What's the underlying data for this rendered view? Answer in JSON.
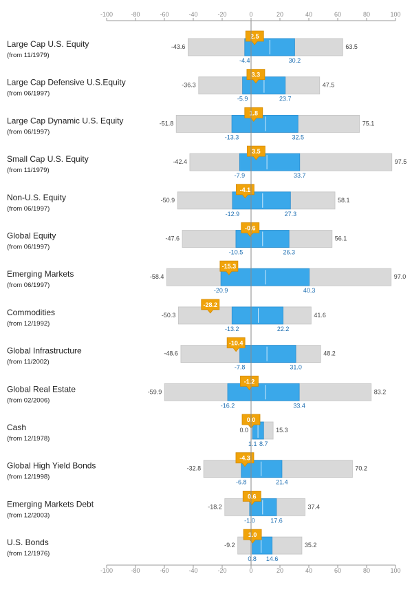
{
  "chart_data": {
    "type": "range-bar",
    "xlim": [
      -100,
      100
    ],
    "ticks": [
      -100,
      -80,
      -60,
      -40,
      -20,
      0,
      20,
      40,
      60,
      80,
      100
    ],
    "grid": false,
    "colors": {
      "range": "#d9d9d9",
      "interquartile": "#3aa8ea",
      "marker": "#f0a30a",
      "axis": "#999999"
    },
    "categories": [
      {
        "name": "Large Cap U.S. Equity",
        "since": "(from 11/1979)",
        "min": -43.6,
        "q1": -4.4,
        "median": 13.0,
        "q3": 30.2,
        "max": 63.5,
        "current": 2.5,
        "min_label": "-43.6",
        "q1_label": "-4.4",
        "q3_label": "30.2",
        "max_label": "63.5",
        "current_label": "2.5"
      },
      {
        "name": "Large Cap Defensive U.S.Equity",
        "since": "(from 06/1997)",
        "min": -36.3,
        "q1": -5.9,
        "median": 9.0,
        "q3": 23.7,
        "max": 47.5,
        "current": 3.3,
        "min_label": "-36.3",
        "q1_label": "-5.9",
        "q3_label": "23.7",
        "max_label": "47.5",
        "current_label": "3.3"
      },
      {
        "name": "Large Cap Dynamic U.S. Equity",
        "since": "(from 06/1997)",
        "min": -51.8,
        "q1": -13.3,
        "median": 10.0,
        "q3": 32.5,
        "max": 75.1,
        "current": 1.8,
        "min_label": "-51.8",
        "q1_label": "-13.3",
        "q3_label": "32.5",
        "max_label": "75.1",
        "current_label": "1.8"
      },
      {
        "name": "Small Cap U.S. Equity",
        "since": "(from 11/1979)",
        "min": -42.4,
        "q1": -7.9,
        "median": 11.0,
        "q3": 33.7,
        "max": 97.5,
        "current": 3.5,
        "min_label": "-42.4",
        "q1_label": "-7.9",
        "q3_label": "33.7",
        "max_label": "97.5",
        "current_label": "3.5"
      },
      {
        "name": "Non-U.S. Equity",
        "since": "(from 06/1997)",
        "min": -50.9,
        "q1": -12.9,
        "median": 8.0,
        "q3": 27.3,
        "max": 58.1,
        "current": -4.1,
        "min_label": "-50.9",
        "q1_label": "-12.9",
        "q3_label": "27.3",
        "max_label": "58.1",
        "current_label": "-4.1"
      },
      {
        "name": "Global Equity",
        "since": "(from 06/1997)",
        "min": -47.6,
        "q1": -10.5,
        "median": 8.0,
        "q3": 26.3,
        "max": 56.1,
        "current": -0.6,
        "min_label": "-47.6",
        "q1_label": "-10.5",
        "q3_label": "26.3",
        "max_label": "56.1",
        "current_label": "-0.6"
      },
      {
        "name": "Emerging Markets",
        "since": "(from 06/1997)",
        "min": -58.4,
        "q1": -20.9,
        "median": 10.0,
        "q3": 40.3,
        "max": 97.0,
        "current": -15.3,
        "min_label": "-58.4",
        "q1_label": "-20.9",
        "q3_label": "40.3",
        "max_label": "97.0",
        "current_label": "-15.3"
      },
      {
        "name": "Commodities",
        "since": "(from 12/1992)",
        "min": -50.3,
        "q1": -13.2,
        "median": 5.0,
        "q3": 22.2,
        "max": 41.6,
        "current": -28.2,
        "min_label": "-50.3",
        "q1_label": "-13.2",
        "q3_label": "22.2",
        "max_label": "41.6",
        "current_label": "-28.2"
      },
      {
        "name": "Global Infrastructure",
        "since": "(from 11/2002)",
        "min": -48.6,
        "q1": -7.8,
        "median": 11.0,
        "q3": 31.0,
        "max": 48.2,
        "current": -10.4,
        "min_label": "-48.6",
        "q1_label": "-7.8",
        "q3_label": "31.0",
        "max_label": "48.2",
        "current_label": "-10.4"
      },
      {
        "name": "Global Real Estate",
        "since": "(from 02/2006)",
        "min": -59.9,
        "q1": -16.2,
        "median": 10.0,
        "q3": 33.4,
        "max": 83.2,
        "current": -1.2,
        "min_label": "-59.9",
        "q1_label": "-16.2",
        "q3_label": "33.4",
        "max_label": "83.2",
        "current_label": "-1.2"
      },
      {
        "name": "Cash",
        "since": "(from 12/1978)",
        "min": 0.0,
        "q1": 1.1,
        "median": 4.8,
        "q3": 8.7,
        "max": 15.3,
        "current": 0.0,
        "min_label": "0.0",
        "q1_label": "1.1",
        "q3_label": "8.7",
        "max_label": "15.3",
        "current_label": "0.0"
      },
      {
        "name": "Global High Yield Bonds",
        "since": "(from 12/1998)",
        "min": -32.8,
        "q1": -6.8,
        "median": 7.0,
        "q3": 21.4,
        "max": 70.2,
        "current": -4.3,
        "min_label": "-32.8",
        "q1_label": "-6.8",
        "q3_label": "21.4",
        "max_label": "70.2",
        "current_label": "-4.3"
      },
      {
        "name": "Emerging Markets Debt",
        "since": "(from 12/2003)",
        "min": -18.2,
        "q1": -1.0,
        "median": 8.0,
        "q3": 17.6,
        "max": 37.4,
        "current": 0.6,
        "min_label": "-18.2",
        "q1_label": "-1.0",
        "q3_label": "17.6",
        "max_label": "37.4",
        "current_label": "0.6"
      },
      {
        "name": "U.S. Bonds",
        "since": "(from 12/1976)",
        "min": -9.2,
        "q1": 0.8,
        "median": 7.0,
        "q3": 14.6,
        "max": 35.2,
        "current": 1.0,
        "min_label": "-9.2",
        "q1_label": "0.8",
        "q3_label": "14.6",
        "max_label": "35.2",
        "current_label": "1.0"
      }
    ]
  }
}
